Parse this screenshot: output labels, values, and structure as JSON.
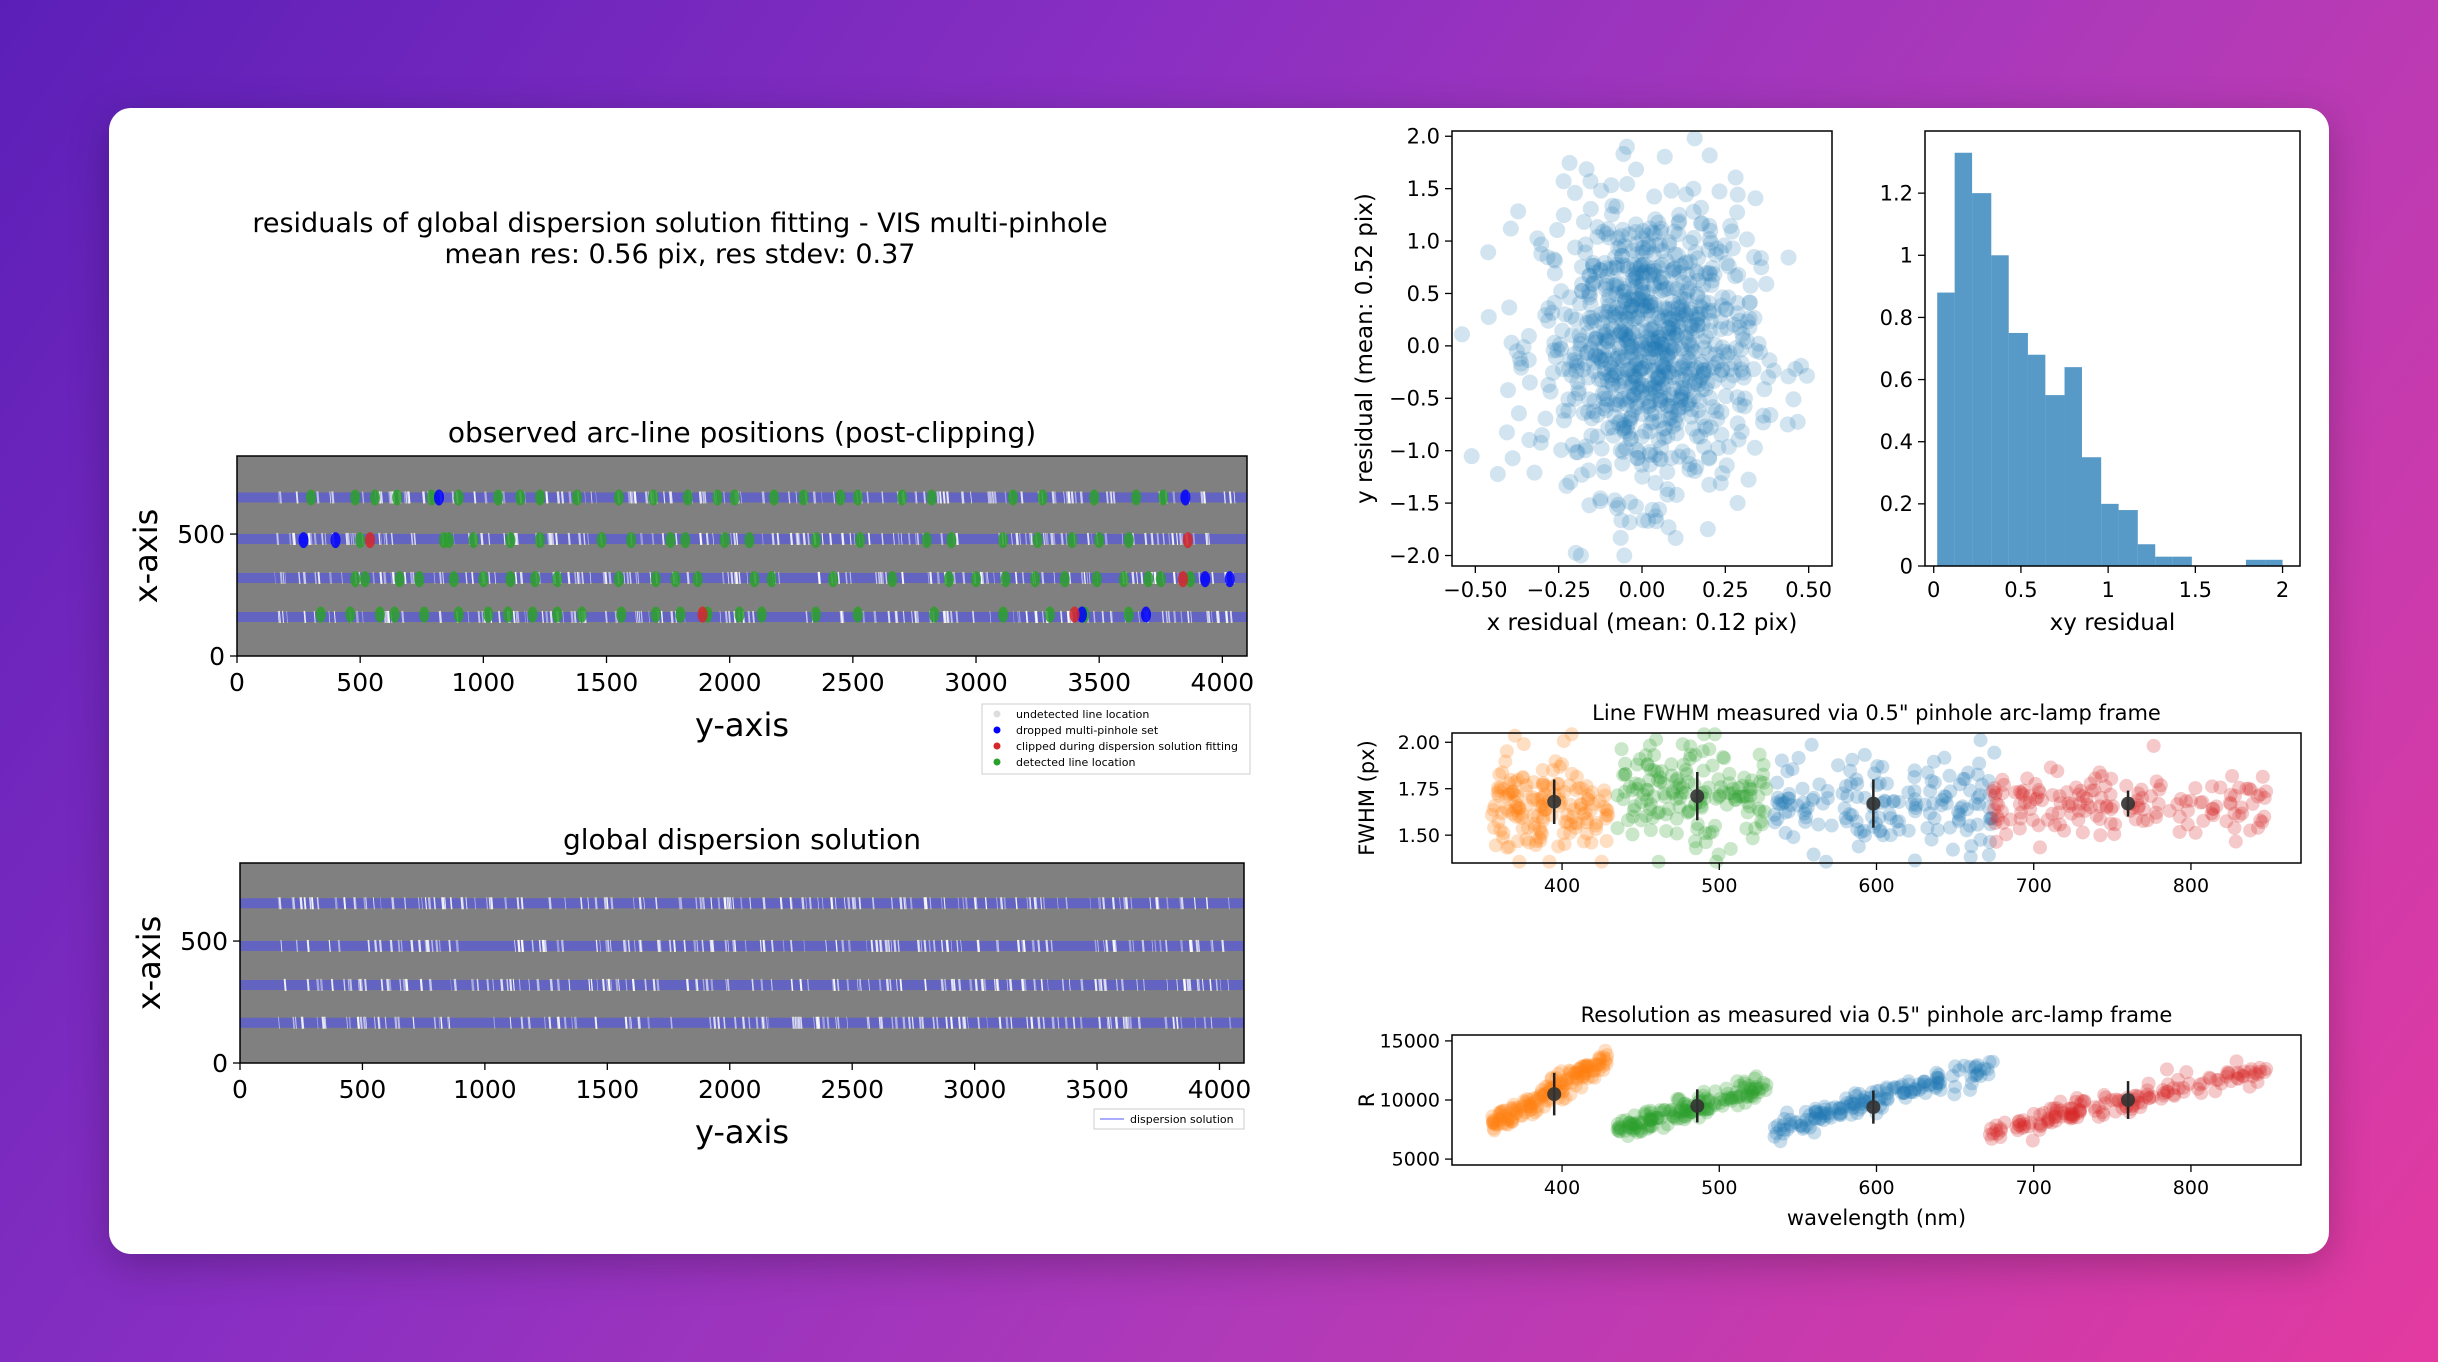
{
  "suptitle": {
    "line1": "residuals of global dispersion solution fitting - VIS multi-pinhole",
    "line2": "mean res: 0.56 pix, res stdev: 0.37"
  },
  "colors": {
    "grey_bg": "#808080",
    "blue_trace": "#4040ff",
    "tab_blue": "#1f77b4",
    "tab_orange": "#ff7f0e",
    "tab_green": "#2ca02c",
    "tab_red": "#d62728"
  },
  "chart_data": [
    {
      "id": "arc-positions",
      "type": "scatter",
      "title": "observed arc-line positions (post-clipping)",
      "xlabel": "y-axis",
      "ylabel": "x-axis",
      "xlim": [
        0,
        4100
      ],
      "ylim": [
        0,
        820
      ],
      "xticks": [
        0,
        500,
        1000,
        1500,
        2000,
        2500,
        3000,
        3500,
        4000
      ],
      "yticks": [
        0,
        500
      ],
      "order_rows": [
        160,
        320,
        480,
        650
      ],
      "legend": {
        "position": "lower-right",
        "entries": [
          "undetected line location",
          "dropped multi-pinhole set",
          "clipped during dispersion solution fitting",
          "detected line location"
        ]
      },
      "series": [
        {
          "name": "detected line location",
          "color": "#2ca02c",
          "points": [
            [
              300,
              650
            ],
            [
              480,
              650
            ],
            [
              560,
              650
            ],
            [
              650,
              650
            ],
            [
              790,
              650
            ],
            [
              900,
              650
            ],
            [
              1060,
              650
            ],
            [
              1150,
              650
            ],
            [
              1230,
              650
            ],
            [
              1380,
              650
            ],
            [
              1550,
              650
            ],
            [
              1690,
              650
            ],
            [
              1830,
              650
            ],
            [
              1950,
              650
            ],
            [
              2020,
              650
            ],
            [
              2180,
              650
            ],
            [
              2300,
              650
            ],
            [
              2450,
              650
            ],
            [
              2520,
              650
            ],
            [
              2700,
              650
            ],
            [
              2820,
              650
            ],
            [
              3150,
              650
            ],
            [
              3270,
              650
            ],
            [
              3480,
              650
            ],
            [
              3650,
              650
            ],
            [
              3760,
              650
            ],
            [
              500,
              475
            ],
            [
              840,
              475
            ],
            [
              860,
              475
            ],
            [
              960,
              475
            ],
            [
              1110,
              475
            ],
            [
              1230,
              475
            ],
            [
              1480,
              475
            ],
            [
              1600,
              475
            ],
            [
              1760,
              475
            ],
            [
              1820,
              475
            ],
            [
              1980,
              475
            ],
            [
              2080,
              475
            ],
            [
              2350,
              475
            ],
            [
              2530,
              475
            ],
            [
              2800,
              475
            ],
            [
              2900,
              475
            ],
            [
              3110,
              475
            ],
            [
              3250,
              475
            ],
            [
              3390,
              475
            ],
            [
              3500,
              475
            ],
            [
              3620,
              475
            ],
            [
              480,
              315
            ],
            [
              520,
              315
            ],
            [
              660,
              315
            ],
            [
              740,
              315
            ],
            [
              880,
              315
            ],
            [
              1000,
              315
            ],
            [
              1110,
              315
            ],
            [
              1210,
              315
            ],
            [
              1300,
              315
            ],
            [
              1550,
              315
            ],
            [
              1700,
              315
            ],
            [
              1780,
              315
            ],
            [
              1870,
              315
            ],
            [
              2100,
              315
            ],
            [
              2170,
              315
            ],
            [
              2420,
              315
            ],
            [
              2660,
              315
            ],
            [
              2890,
              315
            ],
            [
              3000,
              315
            ],
            [
              3120,
              315
            ],
            [
              3240,
              315
            ],
            [
              3360,
              315
            ],
            [
              3490,
              315
            ],
            [
              3600,
              315
            ],
            [
              3700,
              315
            ],
            [
              3750,
              315
            ],
            [
              3870,
              315
            ],
            [
              340,
              170
            ],
            [
              460,
              170
            ],
            [
              580,
              170
            ],
            [
              640,
              170
            ],
            [
              760,
              170
            ],
            [
              900,
              170
            ],
            [
              1020,
              170
            ],
            [
              1100,
              170
            ],
            [
              1200,
              170
            ],
            [
              1300,
              170
            ],
            [
              1400,
              170
            ],
            [
              1560,
              170
            ],
            [
              1700,
              170
            ],
            [
              1800,
              170
            ],
            [
              1910,
              170
            ],
            [
              2040,
              170
            ],
            [
              2130,
              170
            ],
            [
              2350,
              170
            ],
            [
              2520,
              170
            ],
            [
              2830,
              170
            ],
            [
              3110,
              170
            ],
            [
              3300,
              170
            ],
            [
              3440,
              170
            ],
            [
              3620,
              170
            ]
          ]
        },
        {
          "name": "dropped multi-pinhole set",
          "color": "#0000ff",
          "points": [
            [
              820,
              650
            ],
            [
              3850,
              650
            ],
            [
              270,
              475
            ],
            [
              400,
              475
            ],
            [
              3930,
              315
            ],
            [
              4030,
              315
            ],
            [
              3690,
              170
            ],
            [
              3430,
              170
            ]
          ]
        },
        {
          "name": "clipped during dispersion solution fitting",
          "color": "#d62728",
          "points": [
            [
              540,
              475
            ],
            [
              3860,
              475
            ],
            [
              3840,
              315
            ],
            [
              1890,
              170
            ],
            [
              3400,
              170
            ]
          ]
        },
        {
          "name": "undetected line location",
          "color": "#dddddd",
          "points": []
        }
      ]
    },
    {
      "id": "global-solution",
      "type": "line",
      "title": "global dispersion solution",
      "xlabel": "y-axis",
      "ylabel": "x-axis",
      "xlim": [
        0,
        4100
      ],
      "ylim": [
        0,
        820
      ],
      "xticks": [
        0,
        500,
        1000,
        1500,
        2000,
        2500,
        3000,
        3500,
        4000
      ],
      "yticks": [
        0,
        500
      ],
      "order_rows": [
        165,
        320,
        480,
        655
      ],
      "legend": {
        "position": "lower-right",
        "entries": [
          "dispersion solution"
        ]
      }
    },
    {
      "id": "xy-residual-scatter",
      "type": "scatter",
      "xlabel": "x residual (mean: 0.12 pix)",
      "ylabel": "y residual (mean: 0.52 pix)",
      "xlim": [
        -0.57,
        0.57
      ],
      "ylim": [
        -2.1,
        2.05
      ],
      "xticks": [
        -0.5,
        -0.25,
        0.0,
        0.25,
        0.5
      ],
      "xtick_labels": [
        "−0.50",
        "−0.25",
        "0.00",
        "0.25",
        "0.50"
      ],
      "yticks": [
        -2.0,
        -1.5,
        -1.0,
        -0.5,
        0.0,
        0.5,
        1.0,
        1.5,
        2.0
      ],
      "ytick_labels": [
        "−2.0",
        "−1.5",
        "−1.0",
        "−0.5",
        "0.0",
        "0.5",
        "1.0",
        "1.5",
        "2.0"
      ],
      "color": "#1f77b4",
      "n_points": 900,
      "center": [
        0.02,
        0.0
      ],
      "spread": [
        0.16,
        0.7
      ]
    },
    {
      "id": "xy-residual-hist",
      "type": "bar",
      "xlabel": "xy residual",
      "xlim": [
        -0.05,
        2.1
      ],
      "ylim": [
        0,
        1.4
      ],
      "xticks": [
        0.0,
        0.5,
        1.0,
        1.5,
        2.0
      ],
      "yticks": [
        0.0,
        0.2,
        0.4,
        0.6,
        0.8,
        1.0,
        1.2
      ],
      "bin_edges": [
        0.02,
        0.12,
        0.22,
        0.33,
        0.43,
        0.54,
        0.64,
        0.75,
        0.85,
        0.96,
        1.06,
        1.17,
        1.27,
        1.37,
        1.48,
        1.58,
        1.69,
        1.79,
        1.9,
        2.0
      ],
      "values": [
        0.88,
        1.33,
        1.2,
        1.0,
        0.75,
        0.68,
        0.55,
        0.64,
        0.35,
        0.2,
        0.18,
        0.07,
        0.03,
        0.03,
        0.0,
        0.0,
        0.0,
        0.02,
        0.02
      ],
      "color": "#1f77b4"
    },
    {
      "id": "fwhm",
      "type": "scatter",
      "title": "Line FWHM measured via 0.5\" pinhole  arc-lamp frame",
      "ylabel": "FWHM (px)",
      "xlim": [
        330,
        870
      ],
      "ylim": [
        1.35,
        2.05
      ],
      "xticks": [
        400,
        500,
        600,
        700,
        800
      ],
      "yticks": [
        1.5,
        1.75,
        2.0
      ],
      "ytick_labels": [
        "1.50",
        "1.75",
        "2.00"
      ],
      "groups": [
        {
          "name": "orange",
          "color": "#ff7f0e",
          "xrange": [
            355,
            430
          ],
          "ymean": 1.68,
          "ysd": 0.13
        },
        {
          "name": "green",
          "color": "#2ca02c",
          "xrange": [
            435,
            530
          ],
          "ymean": 1.72,
          "ysd": 0.14
        },
        {
          "name": "blue",
          "color": "#1f77b4",
          "xrange": [
            535,
            675
          ],
          "ymean": 1.67,
          "ysd": 0.13
        },
        {
          "name": "red",
          "color": "#d62728",
          "xrange": [
            672,
            848
          ],
          "ymean": 1.66,
          "ysd": 0.09
        }
      ],
      "errorbars": [
        [
          395,
          1.68,
          0.12
        ],
        [
          486,
          1.71,
          0.13
        ],
        [
          598,
          1.67,
          0.13
        ],
        [
          760,
          1.67,
          0.07
        ]
      ]
    },
    {
      "id": "resolution",
      "type": "scatter",
      "title": "Resolution as measured via 0.5\" pinhole arc-lamp frame",
      "xlabel": "wavelength (nm)",
      "ylabel": "R",
      "xlim": [
        330,
        870
      ],
      "ylim": [
        4500,
        15500
      ],
      "xticks": [
        400,
        500,
        600,
        700,
        800
      ],
      "yticks": [
        5000,
        10000,
        15000
      ],
      "groups": [
        {
          "name": "orange",
          "color": "#ff7f0e",
          "xrange": [
            355,
            430
          ],
          "ystart": 7800,
          "yend": 13500
        },
        {
          "name": "green",
          "color": "#2ca02c",
          "xrange": [
            435,
            530
          ],
          "ystart": 7400,
          "yend": 11200
        },
        {
          "name": "blue",
          "color": "#1f77b4",
          "xrange": [
            535,
            675
          ],
          "ystart": 7500,
          "yend": 13000
        },
        {
          "name": "red",
          "color": "#d62728",
          "xrange": [
            672,
            848
          ],
          "ystart": 7300,
          "yend": 12600
        }
      ],
      "errorbars": [
        [
          395,
          10500,
          1800
        ],
        [
          486,
          9500,
          1400
        ],
        [
          598,
          9400,
          1400
        ],
        [
          760,
          10000,
          1600
        ]
      ]
    }
  ]
}
